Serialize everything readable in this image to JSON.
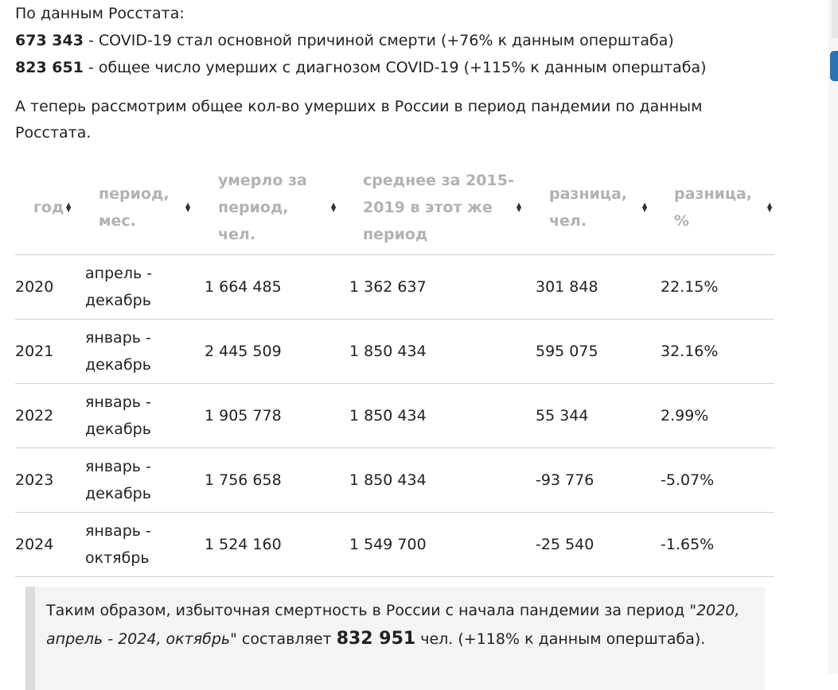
{
  "rosstat": {
    "heading": "По данным Росстата:",
    "line1_value": "673 343",
    "line1_text": " - COVID-19 стал основной причиной смерти (+76% к данным оперштаба)",
    "line2_value": "823 651",
    "line2_text": " - общее число умерших с диагнозом COVID-19 (+115% к данным оперштаба)"
  },
  "intro_paragraph": "А теперь рассмотрим общее кол-во умерших в России в период пандемии по данным Росстата.",
  "table": {
    "headers": [
      "год",
      "период, мес.",
      "умерло за период, чел.",
      "среднее за 2015-2019 в этот же период",
      "разница, чел.",
      "разница, %"
    ],
    "rows": [
      [
        "2020",
        "апрель - декабрь",
        "1 664 485",
        "1 362 637",
        "301 848",
        "22.15%"
      ],
      [
        "2021",
        "январь - декабрь",
        "2 445 509",
        "1 850 434",
        "595 075",
        "32.16%"
      ],
      [
        "2022",
        "январь - декабрь",
        "1 905 778",
        "1 850 434",
        "55 344",
        "2.99%"
      ],
      [
        "2023",
        "январь - декабрь",
        "1 756 658",
        "1 850 434",
        "-93 776",
        "-5.07%"
      ],
      [
        "2024",
        "январь - октябрь",
        "1 524 160",
        "1 549 700",
        "-25 540",
        "-1.65%"
      ]
    ]
  },
  "summary": {
    "text1": "Таким образом, избыточная смертность в России с начала пандемии за период ",
    "period": "\"2020, апрель - 2024, октябрь\"",
    "text2": " составляет ",
    "value": "832 951",
    "text3": " чел. (+118% к данным оперштаба)."
  },
  "icons": {
    "sort": "sort-updown-icon"
  },
  "colors": {
    "header_text": "#b2b2b2",
    "scroll_thumb": "#2574b9"
  }
}
